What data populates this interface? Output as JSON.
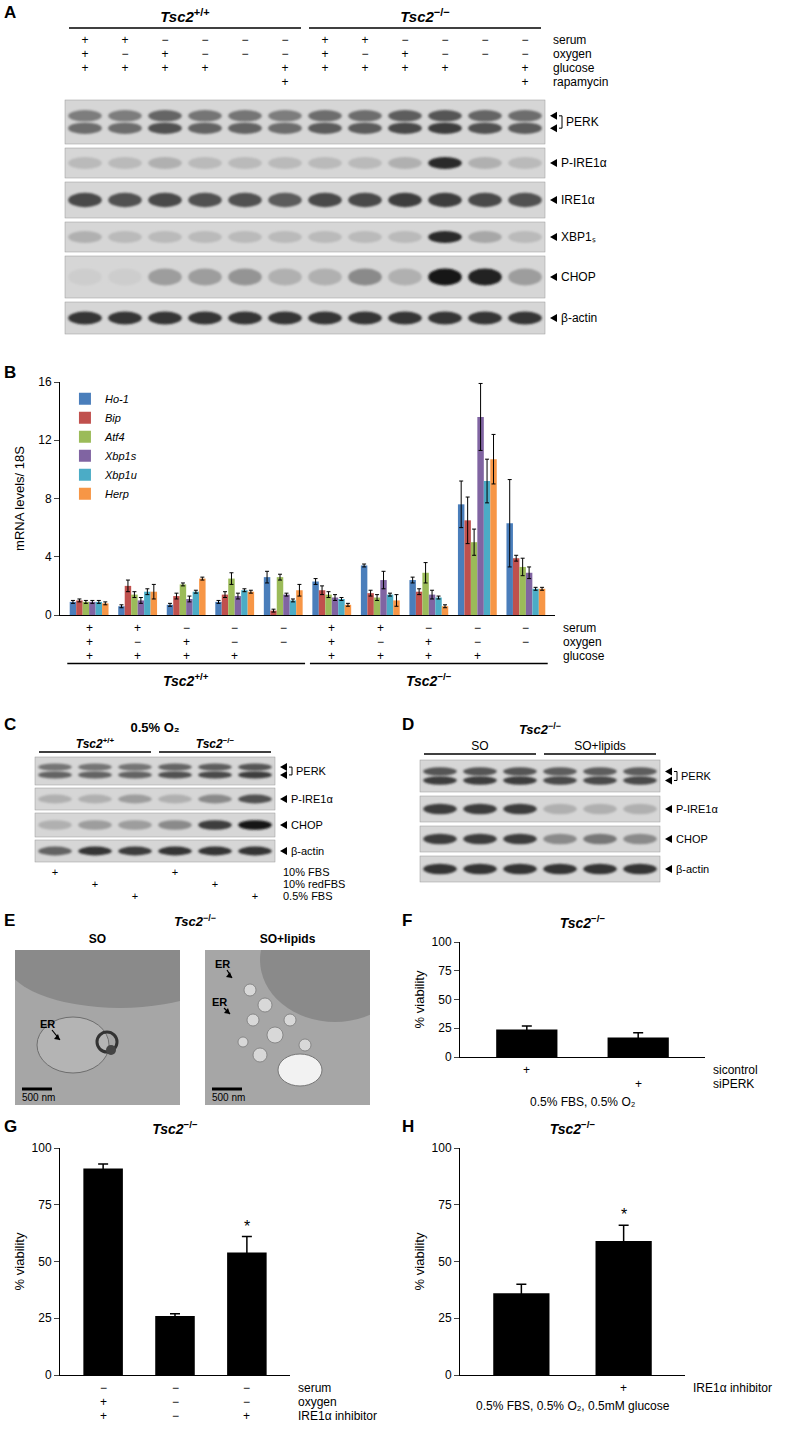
{
  "chart_data": [
    {
      "label": "B",
      "type": "bar",
      "ylabel": "mRNA levels/ 18S",
      "categories": [
        null,
        null,
        null,
        null,
        null,
        null,
        null,
        null,
        null,
        null
      ],
      "series": [
        {
          "name": "Ho-1",
          "color": "#4a7ebb",
          "values": [
            0.9,
            0.6,
            0.7,
            0.9,
            2.6,
            2.3,
            3.4,
            2.4,
            7.6,
            6.3
          ],
          "error": [
            0.1,
            0.1,
            0.1,
            0.1,
            0.4,
            0.2,
            0.1,
            0.2,
            1.6,
            3.0
          ]
        },
        {
          "name": "Bip",
          "color": "#c0504d",
          "values": [
            1.0,
            2.0,
            1.3,
            1.4,
            0.3,
            1.7,
            1.5,
            1.6,
            6.5,
            3.9
          ],
          "error": [
            0.1,
            0.4,
            0.2,
            0.2,
            0.1,
            0.3,
            0.2,
            0.2,
            1.6,
            0.2
          ]
        },
        {
          "name": "Atf4",
          "color": "#9bbb59",
          "values": [
            0.9,
            1.4,
            2.1,
            2.5,
            2.6,
            1.4,
            1.2,
            2.9,
            5.0,
            3.3
          ],
          "error": [
            0.1,
            0.2,
            0.1,
            0.4,
            0.2,
            0.2,
            0.2,
            0.7,
            0.9,
            0.6
          ]
        },
        {
          "name": "Xbp1s",
          "color": "#8064a2",
          "values": [
            0.9,
            1.0,
            1.1,
            1.3,
            1.4,
            1.2,
            2.4,
            1.4,
            13.6,
            2.9
          ],
          "error": [
            0.1,
            0.2,
            0.2,
            0.2,
            0.1,
            0.2,
            0.6,
            0.3,
            2.3,
            0.4
          ]
        },
        {
          "name": "Xbp1u",
          "color": "#4bacc6",
          "values": [
            0.9,
            1.6,
            1.6,
            1.7,
            1.0,
            1.1,
            1.4,
            1.2,
            9.2,
            1.8
          ],
          "error": [
            0.1,
            0.2,
            0.1,
            0.1,
            0.1,
            0.1,
            0.1,
            0.1,
            1.5,
            0.1
          ]
        },
        {
          "name": "Herp",
          "color": "#f79646",
          "values": [
            0.8,
            1.6,
            2.5,
            1.6,
            1.7,
            0.7,
            1.0,
            0.6,
            10.7,
            1.8
          ],
          "error": [
            0.1,
            0.5,
            0.1,
            0.1,
            0.4,
            0.1,
            0.4,
            0.1,
            1.7,
            0.1
          ]
        }
      ],
      "ylim": [
        0,
        16
      ],
      "yticks": [
        0,
        4,
        8,
        12,
        16
      ],
      "grid": false,
      "legend": "top-left",
      "tick_labels": "y",
      "groups": [
        {
          "gene": "Tsc2",
          "genotype": "+/+",
          "size": 5
        },
        {
          "gene": "Tsc2",
          "genotype": "−/−",
          "size": 5
        }
      ],
      "conditions": [
        {
          "name": "serum",
          "values": [
            "+",
            "+",
            "−",
            "−",
            "−",
            "+",
            "+",
            "−",
            "−",
            "−"
          ]
        },
        {
          "name": "oxygen",
          "values": [
            "+",
            "−",
            "+",
            "−",
            "−",
            "+",
            "−",
            "+",
            "−",
            "−"
          ]
        },
        {
          "name": "glucose",
          "values": [
            "+",
            "+",
            "+",
            "+",
            null,
            "+",
            "+",
            "+",
            "+",
            null
          ]
        }
      ]
    },
    {
      "label": "F",
      "type": "bar",
      "title": "Tsc2",
      "title_superscript": "−/−",
      "ylabel": "% viability",
      "categories": [
        null,
        null
      ],
      "values": [
        24,
        17
      ],
      "error": [
        3,
        4
      ],
      "color": "#000000",
      "ylim": [
        0,
        100
      ],
      "yticks": [
        0,
        25,
        50,
        75,
        100
      ],
      "grid": false,
      "tick_labels": "y",
      "conditions": [
        {
          "name": "sicontrol",
          "values": [
            "+",
            null
          ]
        },
        {
          "name": "siPERK",
          "values": [
            null,
            "+"
          ]
        }
      ],
      "xlabel": "0.5% FBS, 0.5% O₂"
    },
    {
      "label": "G",
      "type": "bar",
      "title": "Tsc2",
      "title_superscript": "−/−",
      "ylabel": "% viability",
      "categories": [
        null,
        null,
        null
      ],
      "values": [
        91,
        26,
        54
      ],
      "error": [
        2,
        1,
        7
      ],
      "significance": [
        null,
        null,
        "*"
      ],
      "color": "#000000",
      "ylim": [
        0,
        100
      ],
      "yticks": [
        0,
        25,
        50,
        75,
        100
      ],
      "grid": false,
      "tick_labels": "y",
      "conditions": [
        {
          "name": "serum",
          "values": [
            "−",
            "−",
            "−"
          ]
        },
        {
          "name": "oxygen",
          "values": [
            "+",
            "−",
            "−"
          ]
        },
        {
          "name": "IRE1α inhibitor",
          "values": [
            "+",
            "−",
            "+"
          ]
        }
      ]
    },
    {
      "label": "H",
      "type": "bar",
      "title": "Tsc2",
      "title_superscript": "−/−",
      "ylabel": "% viability",
      "categories": [
        null,
        null
      ],
      "values": [
        36,
        59
      ],
      "error": [
        4,
        7
      ],
      "significance": [
        null,
        "*"
      ],
      "color": "#000000",
      "ylim": [
        0,
        100
      ],
      "yticks": [
        0,
        25,
        50,
        75,
        100
      ],
      "grid": false,
      "tick_labels": "y",
      "conditions": [
        {
          "name": "IRE1α inhibitor",
          "values": [
            null,
            "+"
          ]
        }
      ],
      "xlabel": "0.5% FBS, 0.5% O₂, 0.5mM glucose"
    }
  ],
  "blots": [
    {
      "label": "A",
      "groups": [
        {
          "gene": "Tsc2",
          "genotype": "+/+",
          "size": 6
        },
        {
          "gene": "Tsc2",
          "genotype": "−/−",
          "size": 6
        }
      ],
      "conditions": [
        {
          "name": "serum",
          "values": [
            "+",
            "+",
            "−",
            "−",
            "−",
            "−",
            "+",
            "+",
            "−",
            "−",
            "−",
            "−"
          ]
        },
        {
          "name": "oxygen",
          "values": [
            "+",
            "−",
            "+",
            "−",
            "−",
            "−",
            "+",
            "−",
            "+",
            "−",
            "−",
            "−"
          ]
        },
        {
          "name": "glucose",
          "values": [
            "+",
            "+",
            "+",
            "+",
            null,
            "+",
            "+",
            "+",
            "+",
            "+",
            null,
            "+"
          ]
        },
        {
          "name": "rapamycin",
          "values": [
            null,
            null,
            null,
            null,
            null,
            "+",
            null,
            null,
            null,
            null,
            null,
            "+"
          ]
        }
      ],
      "rows": [
        {
          "name": "PERK",
          "doublet": true,
          "intensity": [
            0.55,
            0.55,
            0.7,
            0.6,
            0.6,
            0.55,
            0.65,
            0.65,
            0.75,
            0.8,
            0.7,
            0.65
          ]
        },
        {
          "name": "P-IRE1α",
          "intensity": [
            0.15,
            0.15,
            0.2,
            0.15,
            0.15,
            0.15,
            0.15,
            0.15,
            0.2,
            0.9,
            0.2,
            0.15
          ]
        },
        {
          "name": "IRE1α",
          "intensity": [
            0.75,
            0.7,
            0.75,
            0.7,
            0.7,
            0.65,
            0.75,
            0.75,
            0.8,
            0.8,
            0.75,
            0.7
          ]
        },
        {
          "name": "XBP1ₛ",
          "intensity": [
            0.2,
            0.15,
            0.15,
            0.15,
            0.15,
            0.15,
            0.15,
            0.15,
            0.15,
            0.9,
            0.25,
            0.15
          ]
        },
        {
          "name": "CHOP",
          "intensity": [
            0.05,
            0.05,
            0.3,
            0.3,
            0.35,
            0.2,
            0.2,
            0.4,
            0.2,
            1.0,
            0.95,
            0.3
          ]
        },
        {
          "name": "β-actin",
          "intensity": [
            0.85,
            0.85,
            0.85,
            0.85,
            0.85,
            0.85,
            0.85,
            0.85,
            0.85,
            0.85,
            0.85,
            0.85
          ]
        }
      ]
    },
    {
      "label": "C",
      "title": "0.5% O₂",
      "groups": [
        {
          "gene": "Tsc2",
          "genotype": "+/+",
          "size": 3
        },
        {
          "gene": "Tsc2",
          "genotype": "−/−",
          "size": 3
        }
      ],
      "conditions": [
        {
          "name": "10% FBS",
          "values": [
            "+",
            null,
            null,
            "+",
            null,
            null
          ]
        },
        {
          "name": "10% redFBS",
          "values": [
            null,
            "+",
            null,
            null,
            "+",
            null
          ]
        },
        {
          "name": "0.5% FBS",
          "values": [
            null,
            null,
            "+",
            null,
            null,
            "+"
          ]
        }
      ],
      "rows": [
        {
          "name": "PERK",
          "doublet": true,
          "intensity": [
            0.6,
            0.6,
            0.6,
            0.7,
            0.75,
            0.8
          ]
        },
        {
          "name": "P-IRE1α",
          "intensity": [
            0.2,
            0.2,
            0.3,
            0.2,
            0.4,
            0.7
          ]
        },
        {
          "name": "CHOP",
          "intensity": [
            0.2,
            0.3,
            0.3,
            0.4,
            0.8,
            1.0
          ]
        },
        {
          "name": "β-actin",
          "intensity": [
            0.6,
            0.85,
            0.8,
            0.85,
            0.85,
            0.85
          ]
        }
      ]
    },
    {
      "label": "D",
      "title": "Tsc2",
      "title_superscript": "−/−",
      "groups": [
        {
          "name": "SO",
          "size": 3
        },
        {
          "name": "SO+lipids",
          "size": 3
        }
      ],
      "rows": [
        {
          "name": "PERK",
          "doublet": true,
          "intensity": [
            0.8,
            0.8,
            0.8,
            0.75,
            0.75,
            0.75
          ]
        },
        {
          "name": "P-IRE1α",
          "intensity": [
            0.8,
            0.8,
            0.8,
            0.2,
            0.2,
            0.2
          ]
        },
        {
          "name": "CHOP",
          "intensity": [
            0.8,
            0.8,
            0.8,
            0.4,
            0.5,
            0.4
          ]
        },
        {
          "name": "β-actin",
          "intensity": [
            0.85,
            0.85,
            0.85,
            0.85,
            0.85,
            0.85
          ]
        }
      ]
    }
  ],
  "micrographs": {
    "label": "E",
    "title": "Tsc2",
    "title_superscript": "−/−",
    "images": [
      {
        "title": "SO",
        "labels": [
          "ER"
        ],
        "scale_bar": "500 nm"
      },
      {
        "title": "SO+lipids",
        "labels": [
          "ER",
          "ER"
        ],
        "scale_bar": "500 nm"
      }
    ]
  }
}
